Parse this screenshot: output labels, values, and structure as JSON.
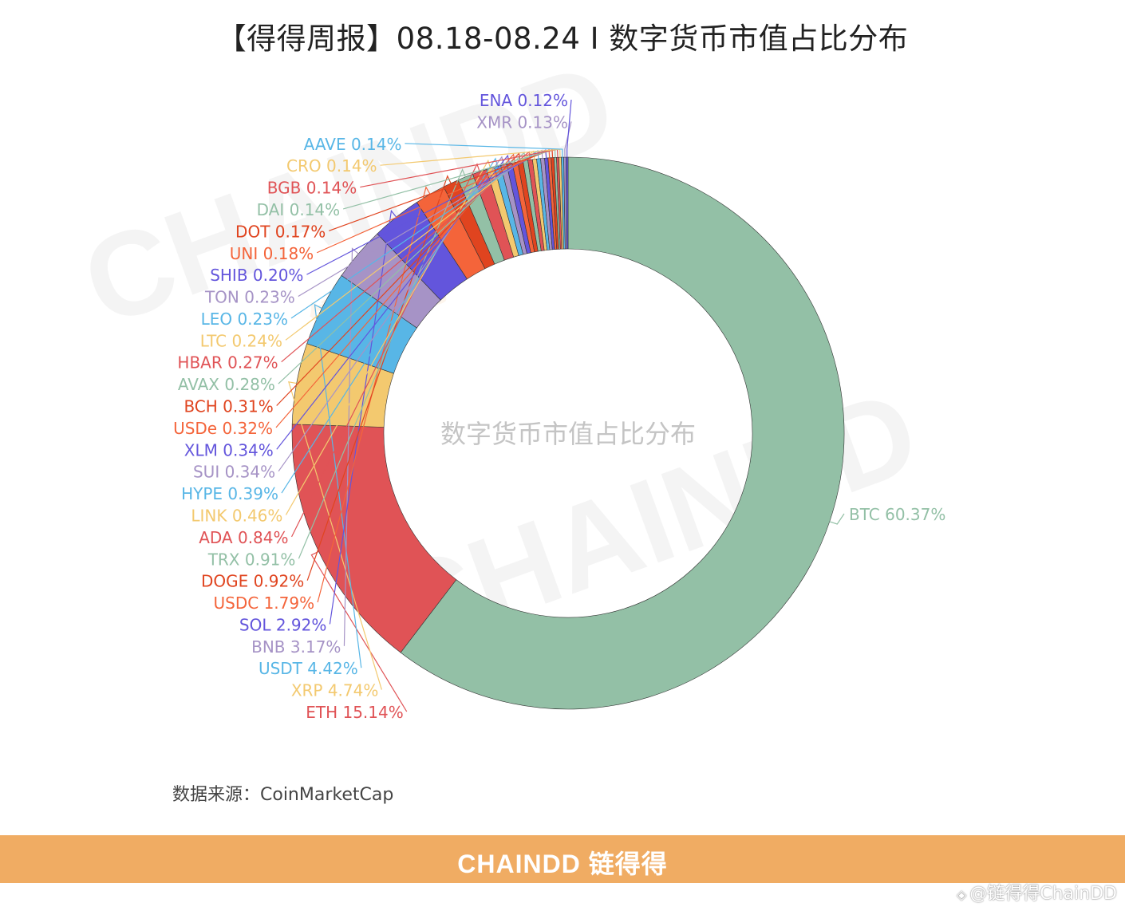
{
  "title": "【得得周报】08.18-08.24 I 数字货币市值占比分布",
  "source_label": "数据来源：CoinMarketCap",
  "footer": {
    "brand": "CHAINDD 链得得"
  },
  "credit": {
    "text": "@链得得ChainDD",
    "icon": "platform-logo-icon"
  },
  "watermark": {
    "latin": "CHAINDD",
    "cn": "链得得"
  },
  "chart_data": {
    "type": "pie",
    "donut": true,
    "center_label": "数字货币市值占比分布",
    "unit": "%",
    "slices": [
      {
        "label": "BTC",
        "value": 60.37,
        "color": "#93c0a6"
      },
      {
        "label": "ETH",
        "value": 15.14,
        "color": "#e05356"
      },
      {
        "label": "XRP",
        "value": 4.74,
        "color": "#f3c96f"
      },
      {
        "label": "USDT",
        "value": 4.42,
        "color": "#58b6e6"
      },
      {
        "label": "BNB",
        "value": 3.17,
        "color": "#a693c6"
      },
      {
        "label": "SOL",
        "value": 2.92,
        "color": "#6355dc"
      },
      {
        "label": "USDC",
        "value": 1.79,
        "color": "#f4643a"
      },
      {
        "label": "DOGE",
        "value": 0.92,
        "color": "#e0441f"
      },
      {
        "label": "TRX",
        "value": 0.91,
        "color": "#93c0a6"
      },
      {
        "label": "ADA",
        "value": 0.84,
        "color": "#e05356"
      },
      {
        "label": "LINK",
        "value": 0.46,
        "color": "#f3c96f"
      },
      {
        "label": "HYPE",
        "value": 0.39,
        "color": "#58b6e6"
      },
      {
        "label": "SUI",
        "value": 0.34,
        "color": "#a693c6"
      },
      {
        "label": "XLM",
        "value": 0.34,
        "color": "#6355dc"
      },
      {
        "label": "USDe",
        "value": 0.32,
        "color": "#f4643a"
      },
      {
        "label": "BCH",
        "value": 0.31,
        "color": "#e0441f"
      },
      {
        "label": "AVAX",
        "value": 0.28,
        "color": "#93c0a6"
      },
      {
        "label": "HBAR",
        "value": 0.27,
        "color": "#e05356"
      },
      {
        "label": "LTC",
        "value": 0.24,
        "color": "#f3c96f"
      },
      {
        "label": "LEO",
        "value": 0.23,
        "color": "#58b6e6"
      },
      {
        "label": "TON",
        "value": 0.23,
        "color": "#a693c6"
      },
      {
        "label": "SHIB",
        "value": 0.2,
        "color": "#6355dc"
      },
      {
        "label": "UNI",
        "value": 0.18,
        "color": "#f4643a"
      },
      {
        "label": "DOT",
        "value": 0.17,
        "color": "#e0441f"
      },
      {
        "label": "DAI",
        "value": 0.14,
        "color": "#93c0a6"
      },
      {
        "label": "BGB",
        "value": 0.14,
        "color": "#e05356"
      },
      {
        "label": "CRO",
        "value": 0.14,
        "color": "#f3c96f"
      },
      {
        "label": "AAVE",
        "value": 0.14,
        "color": "#58b6e6"
      },
      {
        "label": "XMR",
        "value": 0.13,
        "color": "#a693c6"
      },
      {
        "label": "ENA",
        "value": 0.12,
        "color": "#6355dc"
      }
    ]
  }
}
